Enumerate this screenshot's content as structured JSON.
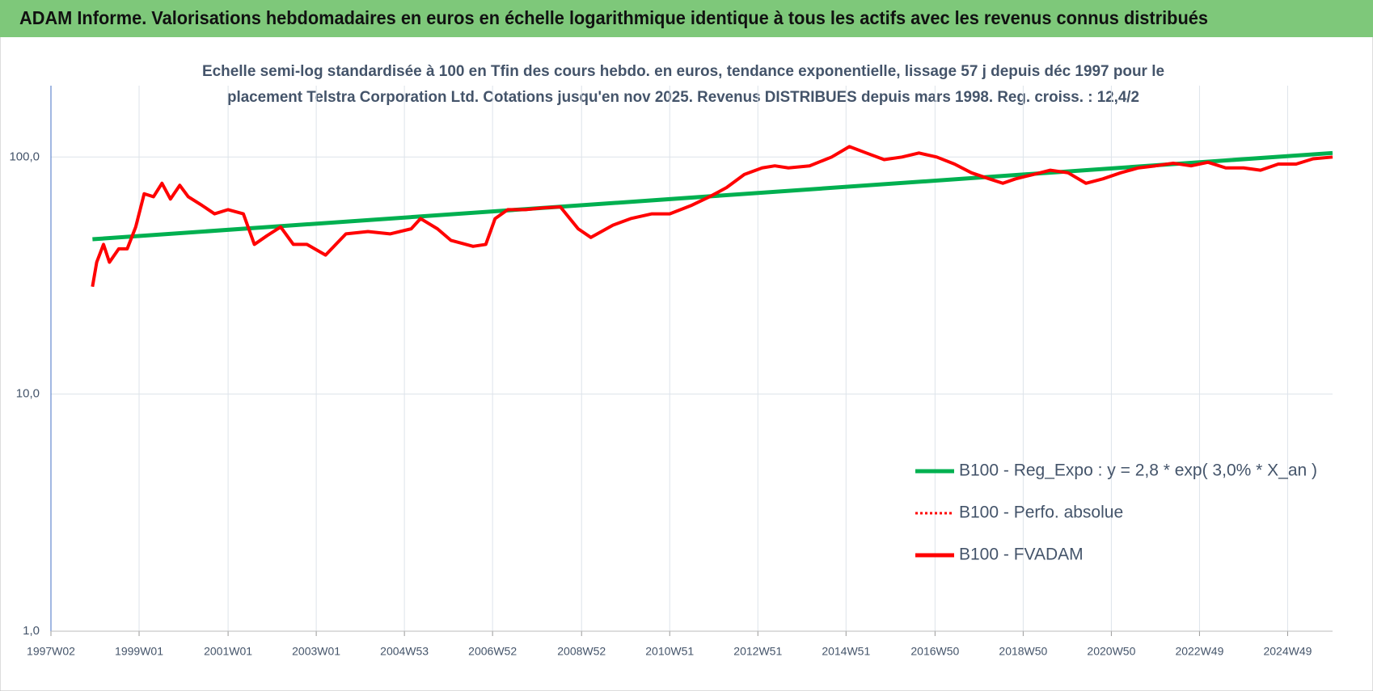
{
  "header": {
    "title": "ADAM Informe. Valorisations hebdomadaires en euros en échelle logarithmique identique à tous les actifs avec les revenus connus distribués"
  },
  "chart_data": {
    "type": "line",
    "subtitle": [
      "Echelle semi-log standardisée à 100 en Tfin des cours hebdo. en euros, tendance exponentielle, lissage 57 j depuis déc 1997 pour le",
      "placement Telstra Corporation Ltd. Cotations jusqu'en nov 2025. Revenus DISTRIBUES depuis mars 1998. Reg. croiss. : 12,4/2"
    ],
    "log_y": true,
    "grid": true,
    "legend": "right",
    "xlim": [
      0,
      1512
    ],
    "xticks": [
      {
        "value": 0,
        "label": "1997W02"
      },
      {
        "value": 104,
        "label": "1999W01"
      },
      {
        "value": 209,
        "label": "2001W01"
      },
      {
        "value": 313,
        "label": "2003W01"
      },
      {
        "value": 417,
        "label": "2004W53"
      },
      {
        "value": 521,
        "label": "2006W52"
      },
      {
        "value": 626,
        "label": "2008W52"
      },
      {
        "value": 730,
        "label": "2010W51"
      },
      {
        "value": 834,
        "label": "2012W51"
      },
      {
        "value": 938,
        "label": "2014W51"
      },
      {
        "value": 1043,
        "label": "2016W50"
      },
      {
        "value": 1147,
        "label": "2018W50"
      },
      {
        "value": 1251,
        "label": "2020W50"
      },
      {
        "value": 1355,
        "label": "2022W49"
      },
      {
        "value": 1459,
        "label": "2024W49"
      }
    ],
    "ylim": [
      1,
      200
    ],
    "yticks": [
      {
        "value": 1,
        "label": "1,0"
      },
      {
        "value": 10,
        "label": "10,0"
      },
      {
        "value": 100,
        "label": "100,0"
      }
    ],
    "series": [
      {
        "name": "B100 - Reg_Expo : y = 2,8 * exp( 3,0% *  X_an )",
        "color": "#00b050",
        "style": "solid",
        "x": [
          49,
          1512
        ],
        "values": [
          45,
          104
        ]
      },
      {
        "name": "B100 - Perfo. absolue",
        "color": "#ff0000",
        "style": "dotted",
        "x": [
          49,
          54,
          62,
          69,
          80,
          90,
          100,
          110,
          121,
          131,
          141,
          152,
          162,
          178,
          193,
          209,
          227,
          240,
          255,
          271,
          286,
          302,
          324,
          348,
          374,
          400,
          425,
          436,
          456,
          472,
          498,
          513,
          524,
          539,
          560,
          580,
          601,
          622,
          637,
          663,
          684,
          709,
          730,
          756,
          777,
          797,
          818,
          839,
          854,
          870,
          895,
          921,
          942,
          962,
          983,
          1004,
          1024,
          1045,
          1066,
          1086,
          1107,
          1123,
          1138,
          1159,
          1179,
          1200,
          1221,
          1241,
          1262,
          1283,
          1303,
          1324,
          1345,
          1365,
          1386,
          1407,
          1427,
          1448,
          1469,
          1489,
          1512
        ],
        "values": [
          28.4,
          36,
          42.8,
          36,
          41,
          41,
          50.7,
          70,
          68,
          77.5,
          66.5,
          76,
          68,
          62.6,
          57.6,
          60,
          57.6,
          42.8,
          46.6,
          50.7,
          42.8,
          42.8,
          38.6,
          47.4,
          48.5,
          47.4,
          49.8,
          55,
          49.8,
          44.5,
          42,
          42.8,
          55,
          60,
          60,
          61,
          61.6,
          49.8,
          45.8,
          51.6,
          55,
          57.6,
          57.6,
          62.6,
          68,
          74.3,
          84.4,
          90,
          91.8,
          90,
          91.8,
          100,
          110.7,
          104,
          97.5,
          100,
          104,
          100,
          93.4,
          85.8,
          80.9,
          77.5,
          80.9,
          84.4,
          88,
          85.8,
          77.5,
          80.9,
          85.8,
          90,
          91.8,
          94.2,
          91.8,
          95,
          90,
          90,
          88,
          93.4,
          93.4,
          98.3,
          100
        ]
      },
      {
        "name": "B100 - FVADAM",
        "color": "#ff0000",
        "style": "solid",
        "x": [
          49,
          54,
          62,
          69,
          80,
          90,
          100,
          110,
          121,
          131,
          141,
          152,
          162,
          178,
          193,
          209,
          227,
          240,
          255,
          271,
          286,
          302,
          324,
          348,
          374,
          400,
          425,
          436,
          456,
          472,
          498,
          513,
          524,
          539,
          560,
          580,
          601,
          622,
          637,
          663,
          684,
          709,
          730,
          756,
          777,
          797,
          818,
          839,
          854,
          870,
          895,
          921,
          942,
          962,
          983,
          1004,
          1024,
          1045,
          1066,
          1086,
          1107,
          1123,
          1138,
          1159,
          1179,
          1200,
          1221,
          1241,
          1262,
          1283,
          1303,
          1324,
          1345,
          1365,
          1386,
          1407,
          1427,
          1448,
          1469,
          1489,
          1512
        ],
        "values": [
          28.4,
          36,
          42.8,
          36,
          41,
          41,
          50.7,
          70,
          68,
          77.5,
          66.5,
          76,
          68,
          62.6,
          57.6,
          60,
          57.6,
          42.8,
          46.6,
          50.7,
          42.8,
          42.8,
          38.6,
          47.4,
          48.5,
          47.4,
          49.8,
          55,
          49.8,
          44.5,
          42,
          42.8,
          55,
          60,
          60,
          61,
          61.6,
          49.8,
          45.8,
          51.6,
          55,
          57.6,
          57.6,
          62.6,
          68,
          74.3,
          84.4,
          90,
          91.8,
          90,
          91.8,
          100,
          110.7,
          104,
          97.5,
          100,
          104,
          100,
          93.4,
          85.8,
          80.9,
          77.5,
          80.9,
          84.4,
          88,
          85.8,
          77.5,
          80.9,
          85.8,
          90,
          91.8,
          94.2,
          91.8,
          95,
          90,
          90,
          88,
          93.4,
          93.4,
          98.3,
          100
        ]
      }
    ]
  }
}
